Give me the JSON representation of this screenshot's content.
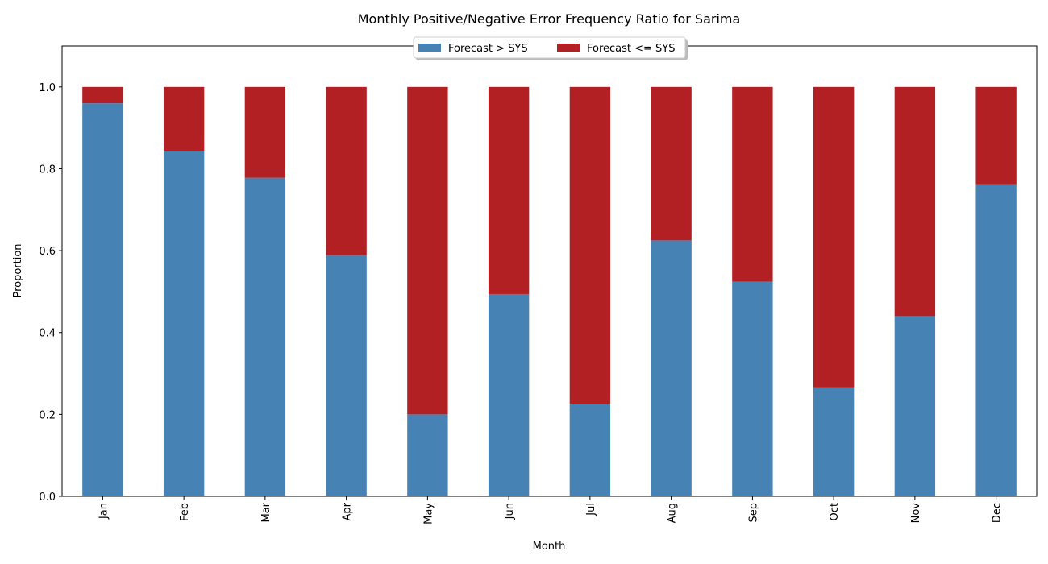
{
  "chart_data": {
    "type": "bar",
    "stacked": true,
    "title": "Monthly Positive/Negative Error Frequency Ratio for Sarima",
    "xlabel": "Month",
    "ylabel": "Proportion",
    "ylim": [
      0,
      1.1
    ],
    "yticks": [
      "0.0",
      "0.2",
      "0.4",
      "0.6",
      "0.8",
      "1.0"
    ],
    "ytick_values": [
      0,
      0.2,
      0.4,
      0.6,
      0.8,
      1.0
    ],
    "categories": [
      "Jan",
      "Feb",
      "Mar",
      "Apr",
      "May",
      "Jun",
      "Jul",
      "Aug",
      "Sep",
      "Oct",
      "Nov",
      "Dec"
    ],
    "series": [
      {
        "name": "Forecast > SYS",
        "color": "#4682b4",
        "values": [
          0.96,
          0.844,
          0.778,
          0.589,
          0.2,
          0.494,
          0.226,
          0.625,
          0.524,
          0.266,
          0.44,
          0.762
        ]
      },
      {
        "name": "Forecast <= SYS",
        "color": "#b22024",
        "values": [
          0.04,
          0.156,
          0.222,
          0.411,
          0.8,
          0.506,
          0.774,
          0.375,
          0.476,
          0.734,
          0.56,
          0.238
        ]
      }
    ],
    "legend": "top-center",
    "grid": false
  }
}
